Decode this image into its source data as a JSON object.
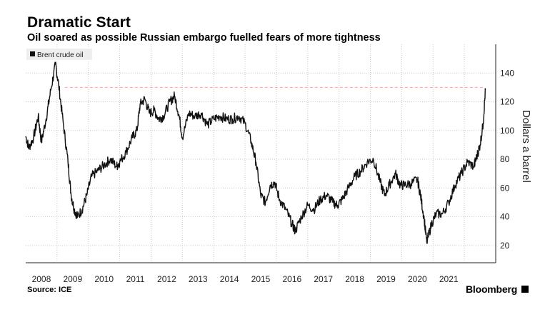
{
  "chart_data": {
    "type": "line",
    "title": "Dramatic Start",
    "subtitle": "Oil soared as possible Russian embargo fuelled fears of more tightness",
    "ylabel": "Dollars a barrel",
    "source": "Source: ICE",
    "brand": "Bloomberg",
    "ylim": [
      8,
      160
    ],
    "xlim": [
      2007.5,
      2022.5
    ],
    "y_ticks": [
      20,
      40,
      60,
      80,
      100,
      120,
      140
    ],
    "x_ticks": [
      2008,
      2009,
      2010,
      2011,
      2012,
      2013,
      2014,
      2015,
      2016,
      2017,
      2018,
      2019,
      2020,
      2021
    ],
    "grid": true,
    "legend_position": "top-left",
    "reference_line": {
      "value": 130,
      "style": "dashed",
      "color": "#f4a6a6"
    },
    "line_color": "#111111",
    "series": [
      {
        "name": "Brent crude oil",
        "x": [
          2007.5,
          2007.6,
          2007.75,
          2007.9,
          2008.0,
          2008.15,
          2008.3,
          2008.45,
          2008.55,
          2008.7,
          2008.85,
          2008.95,
          2009.05,
          2009.15,
          2009.3,
          2009.45,
          2009.6,
          2009.8,
          2010.0,
          2010.2,
          2010.4,
          2010.5,
          2010.7,
          2010.9,
          2011.05,
          2011.15,
          2011.3,
          2011.45,
          2011.6,
          2011.75,
          2011.9,
          2012.1,
          2012.25,
          2012.4,
          2012.5,
          2012.7,
          2012.9,
          2013.1,
          2013.3,
          2013.5,
          2013.7,
          2013.9,
          2014.1,
          2014.3,
          2014.5,
          2014.7,
          2014.85,
          2015.0,
          2015.15,
          2015.3,
          2015.45,
          2015.6,
          2015.8,
          2016.0,
          2016.1,
          2016.3,
          2016.5,
          2016.7,
          2016.9,
          2017.1,
          2017.3,
          2017.45,
          2017.6,
          2017.8,
          2018.0,
          2018.2,
          2018.4,
          2018.6,
          2018.8,
          2018.95,
          2019.1,
          2019.3,
          2019.45,
          2019.6,
          2019.8,
          2020.0,
          2020.1,
          2020.22,
          2020.3,
          2020.45,
          2020.6,
          2020.8,
          2021.0,
          2021.2,
          2021.4,
          2021.6,
          2021.8,
          2021.9,
          2022.0,
          2022.1,
          2022.17
        ],
        "values": [
          96,
          88,
          95,
          110,
          92,
          108,
          128,
          146,
          132,
          105,
          78,
          55,
          45,
          40,
          45,
          55,
          68,
          72,
          76,
          80,
          75,
          78,
          85,
          95,
          100,
          118,
          122,
          112,
          114,
          108,
          110,
          120,
          124,
          110,
          95,
          112,
          110,
          112,
          104,
          108,
          110,
          108,
          108,
          110,
          105,
          92,
          78,
          55,
          50,
          62,
          64,
          52,
          45,
          35,
          30,
          40,
          48,
          45,
          52,
          55,
          50,
          48,
          52,
          60,
          68,
          72,
          78,
          80,
          65,
          55,
          62,
          70,
          62,
          62,
          63,
          66,
          55,
          38,
          22,
          35,
          42,
          42,
          50,
          62,
          70,
          78,
          75,
          82,
          90,
          105,
          128
        ]
      }
    ]
  }
}
